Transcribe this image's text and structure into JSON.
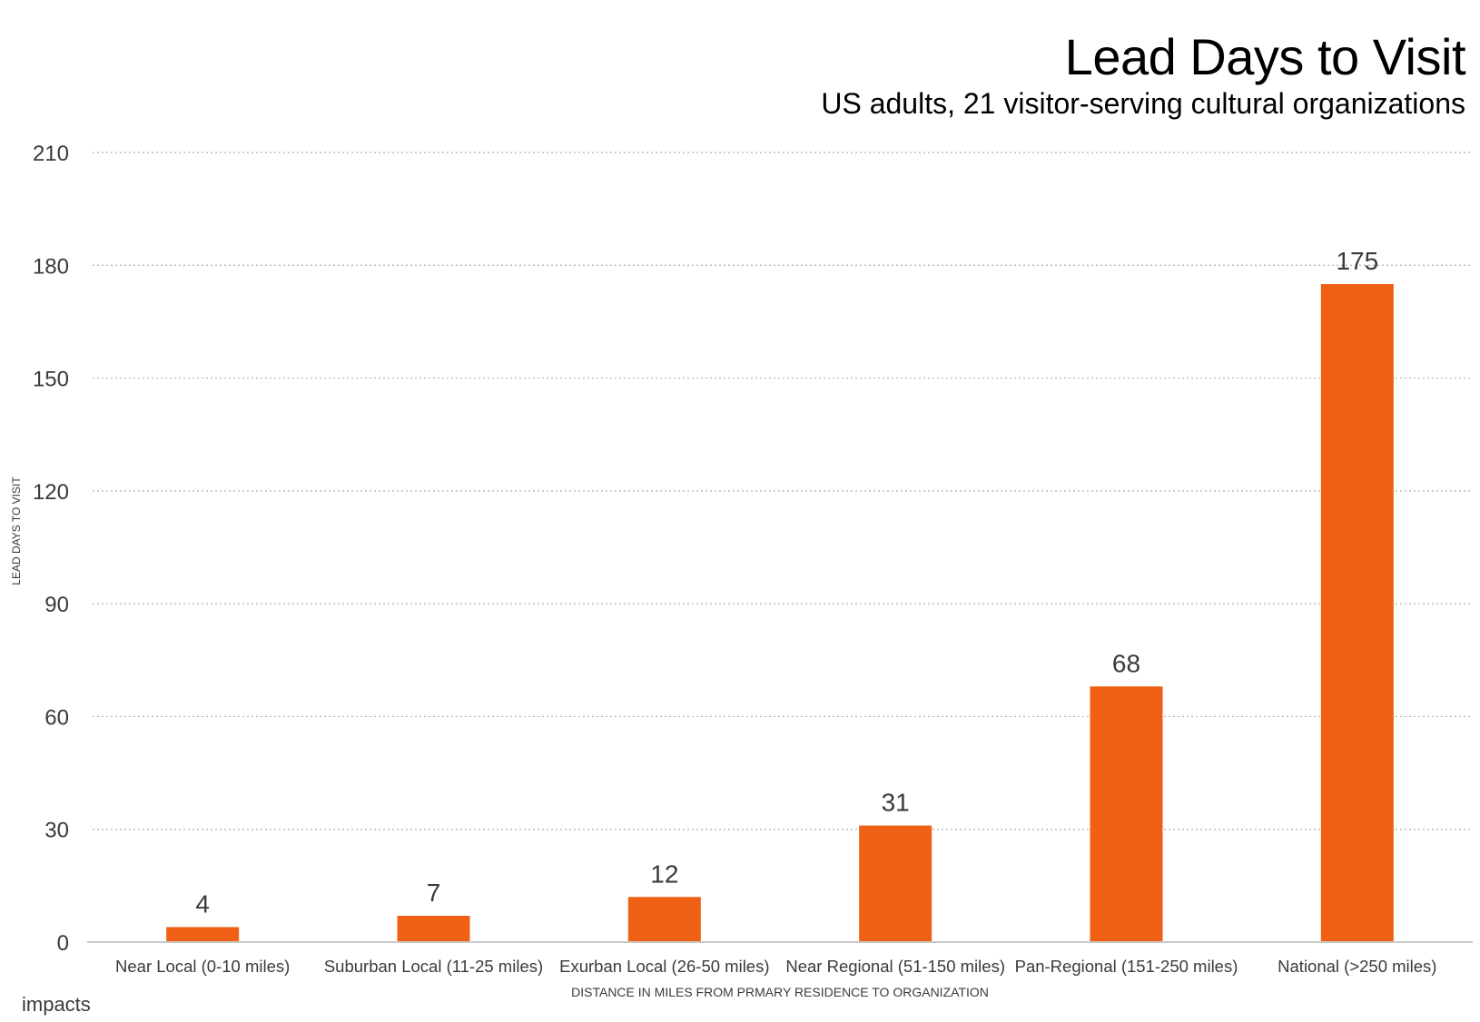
{
  "page": {
    "title": "Lead Days to Visit",
    "subtitle": "US adults, 21 visitor-serving cultural organizations",
    "brand": "impacts"
  },
  "colors": {
    "bar": "#f06014",
    "text": "#3a3a3a",
    "grid": "#b0b0b0",
    "axis": "#c8c8c8"
  },
  "chart_data": {
    "type": "bar",
    "title": "Lead Days to Visit",
    "subtitle": "US adults, 21 visitor-serving cultural organizations",
    "categories": [
      "Near Local (0-10 miles)",
      "Suburban Local (11-25 miles)",
      "Exurban Local (26-50 miles)",
      "Near Regional (51-150 miles)",
      "Pan-Regional (151-250 miles)",
      "National (>250 miles)"
    ],
    "values": [
      4,
      7,
      12,
      31,
      68,
      175
    ],
    "xlabel": "DISTANCE IN MILES FROM PRMARY RESIDENCE TO ORGANIZATION",
    "ylabel": "LEAD DAYS TO VISIT",
    "ylim": [
      0,
      210
    ],
    "yticks": [
      0,
      30,
      60,
      90,
      120,
      150,
      180,
      210
    ],
    "grid": true,
    "data_labels": true,
    "legend": "none"
  }
}
